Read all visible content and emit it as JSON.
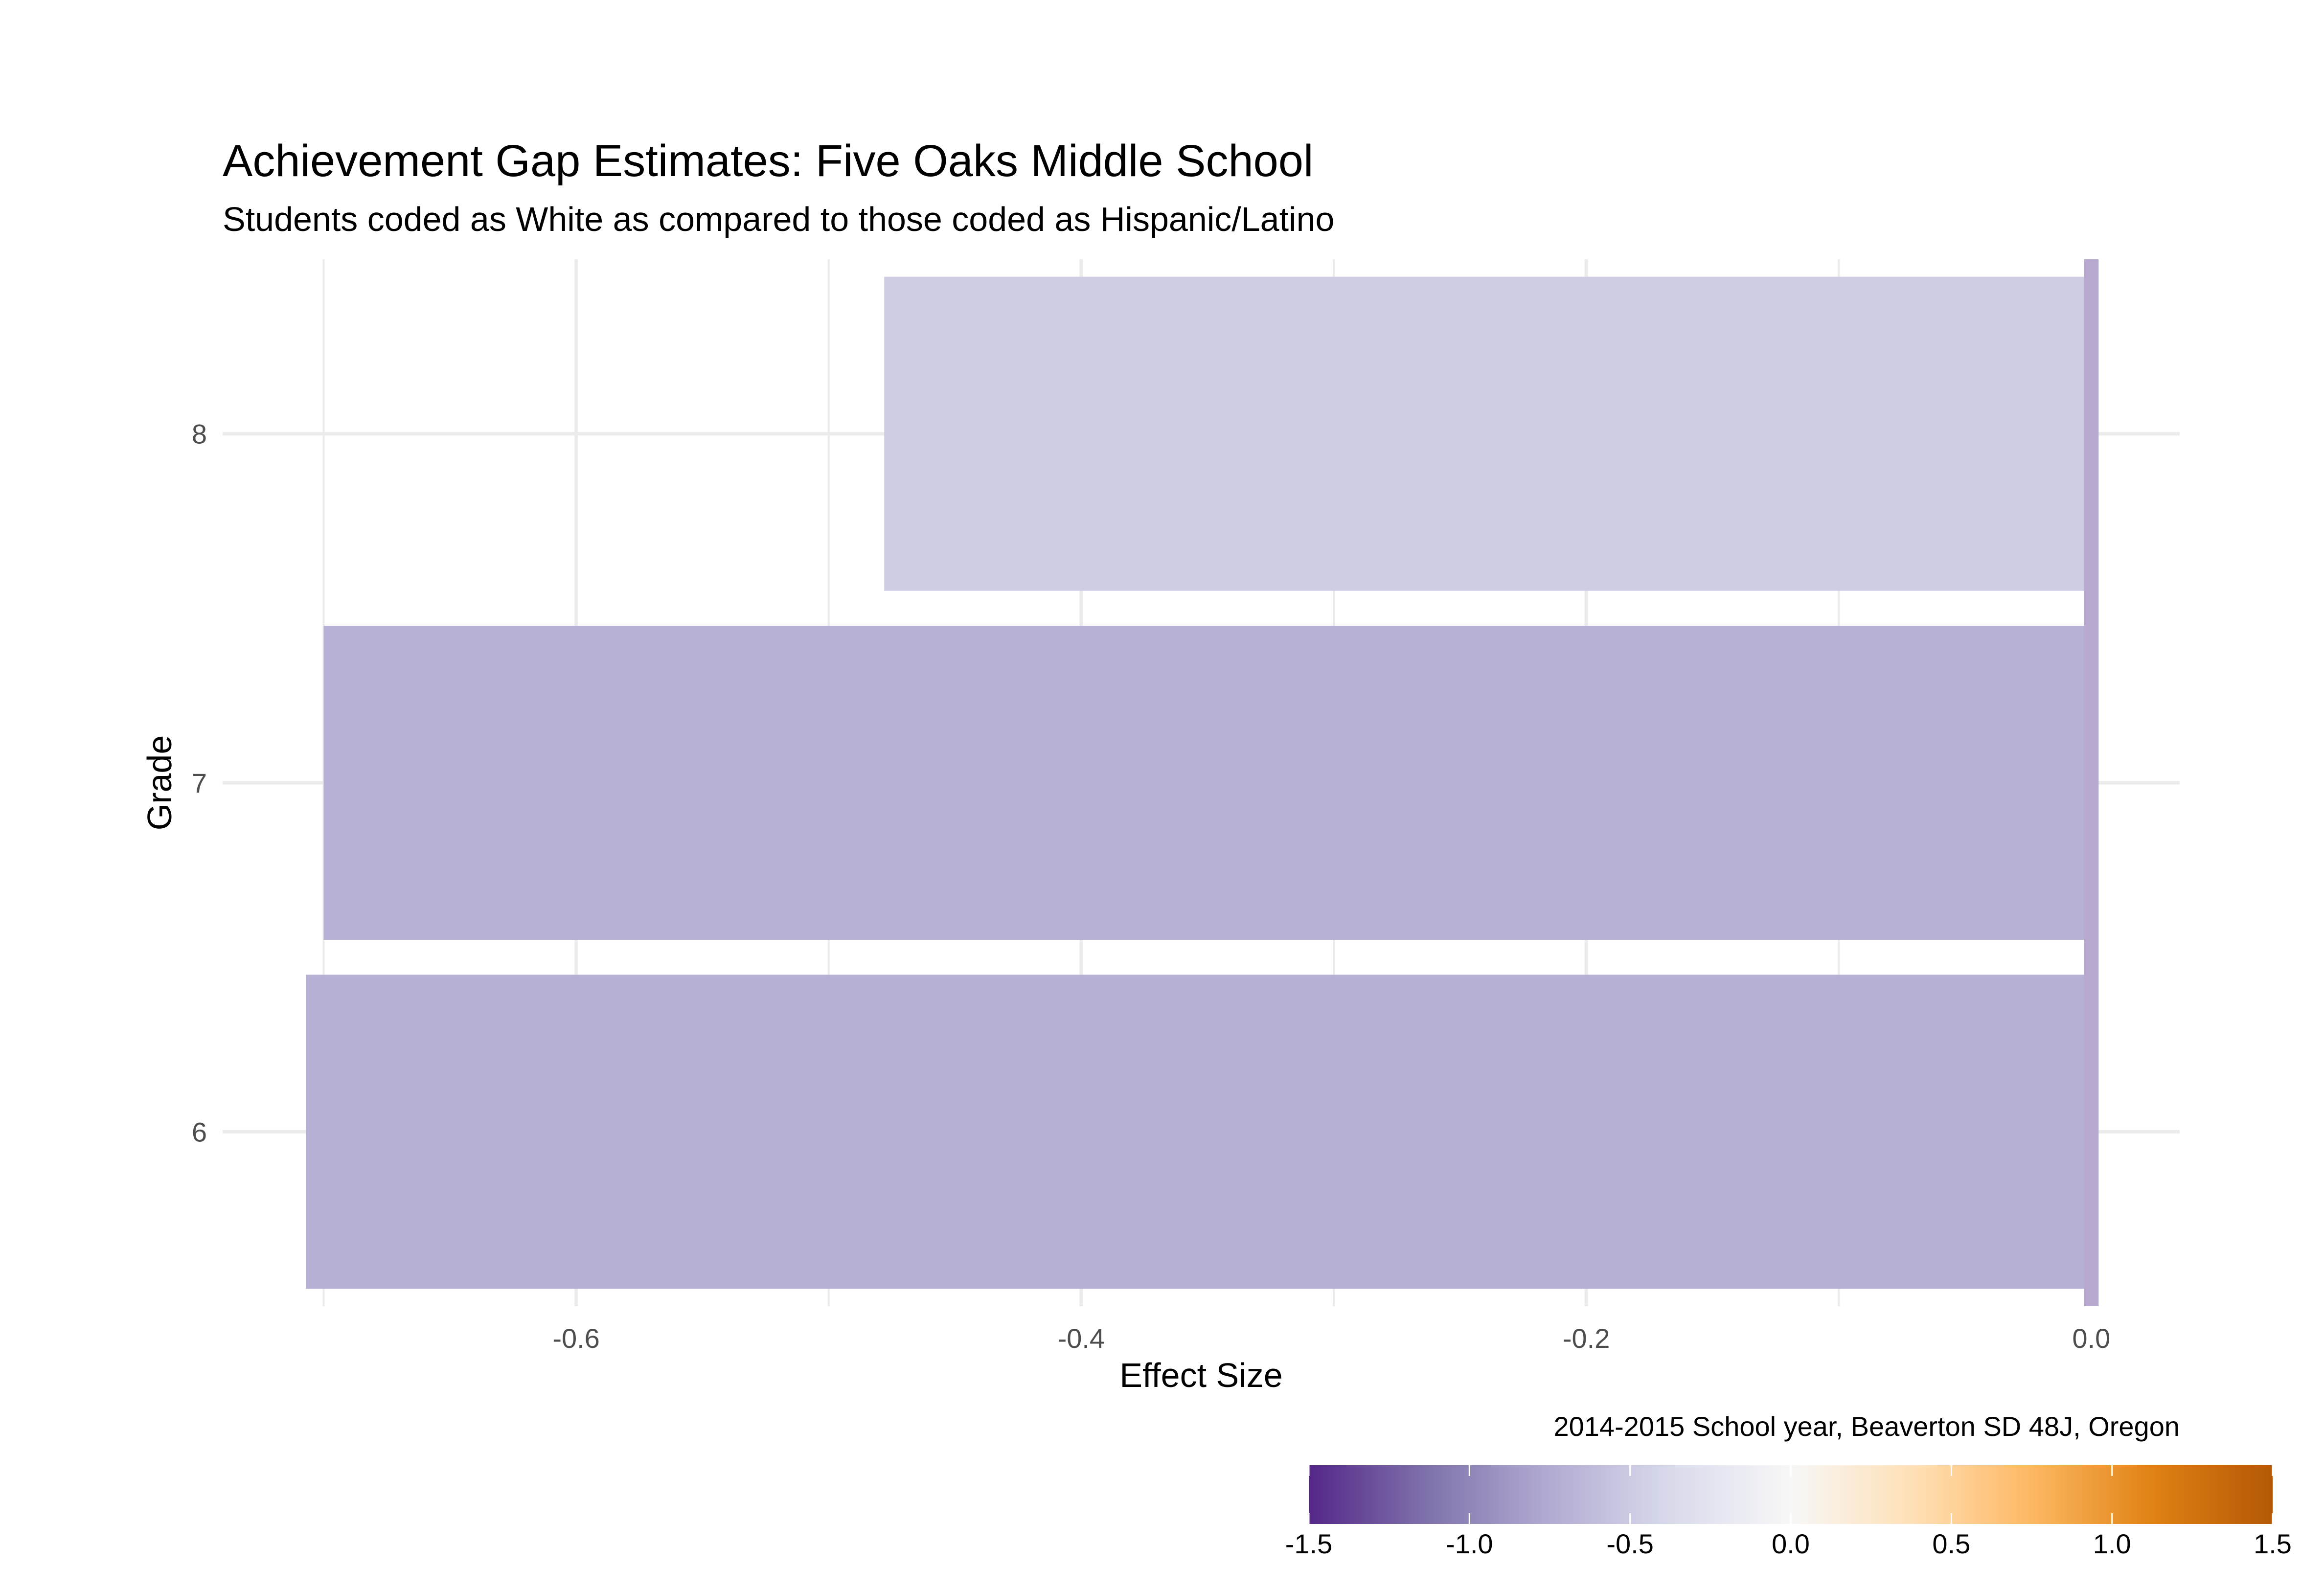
{
  "chart_data": {
    "type": "bar",
    "orientation": "horizontal",
    "title": "Achievement Gap Estimates: Five Oaks Middle School",
    "subtitle": "Students coded as White as compared to those coded as Hispanic/Latino",
    "xlabel": "Effect Size",
    "ylabel": "Grade",
    "caption": "2014-2015 School year, Beaverton SD 48J, Oregon",
    "categories": [
      "6",
      "7",
      "8"
    ],
    "values": [
      -0.707,
      -0.7,
      -0.478
    ],
    "xlim": [
      -0.74,
      0.035
    ],
    "x_ticks": [
      -0.6,
      -0.4,
      -0.2,
      0.0
    ],
    "x_tick_labels": [
      "-0.6",
      "-0.4",
      "-0.2",
      "0.0"
    ],
    "grid": true,
    "reference_line": 0.0,
    "fill_scale": {
      "type": "diverging",
      "palette": "purple-orange",
      "limits": [
        -1.5,
        1.5
      ],
      "ticks": [
        -1.5,
        -1.0,
        -0.5,
        0.0,
        0.5,
        1.0,
        1.5
      ],
      "tick_labels": [
        "-1.5",
        "-1.0",
        "-0.5",
        "0.0",
        "0.5",
        "1.0",
        "1.5"
      ],
      "colors": [
        "#542788",
        "#8073ac",
        "#b2abd2",
        "#d8daeb",
        "#f7f7f7",
        "#fee0b6",
        "#fdb863",
        "#e08214",
        "#b35806"
      ],
      "legend_position": "bottom-right"
    },
    "colors": {
      "reference_line": "#b8a9cf",
      "gridline": "#ebebeb"
    }
  }
}
